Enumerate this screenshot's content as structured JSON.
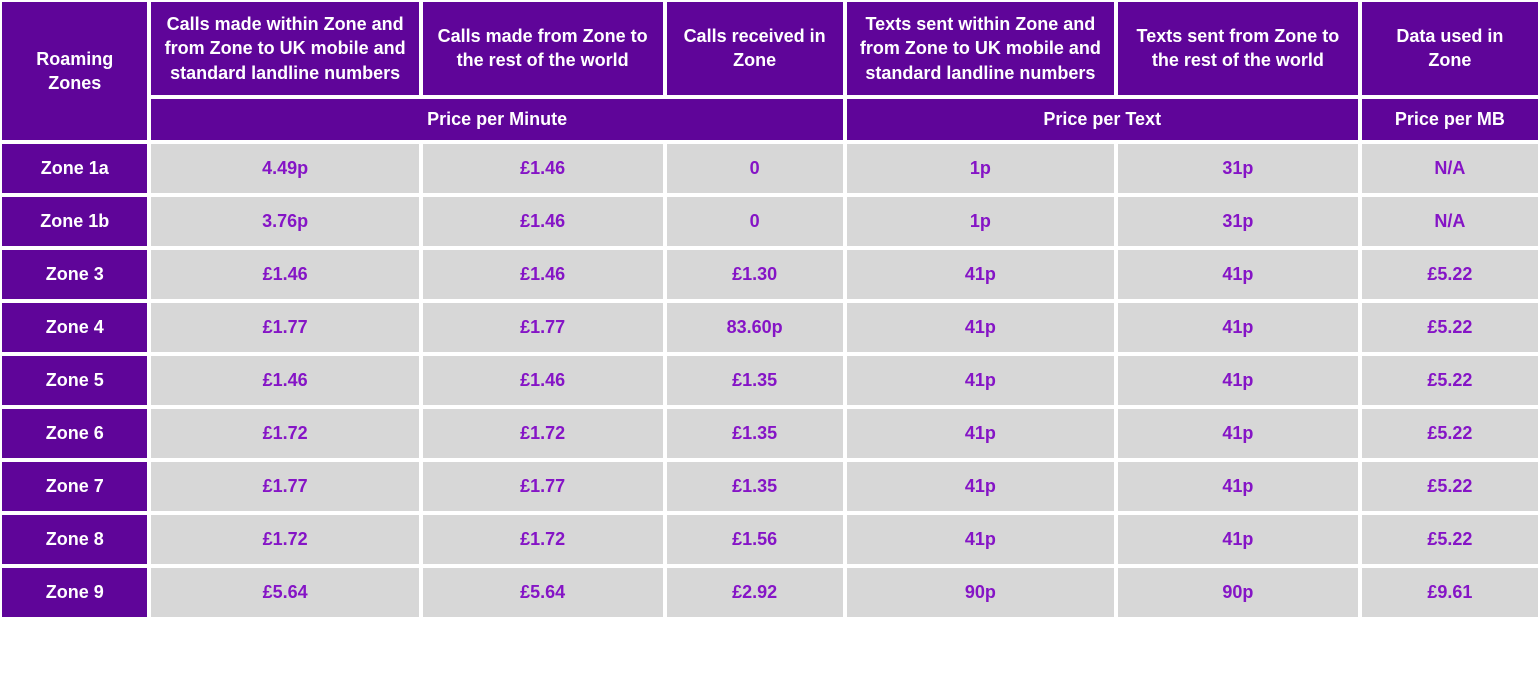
{
  "colors": {
    "header_bg": "#5f0599",
    "header_text": "#ffffff",
    "cell_bg": "#d7d7d7",
    "cell_text": "#8514c6",
    "border": "#ffffff"
  },
  "table": {
    "zone_header": "Roaming Zones",
    "columns": [
      "Calls made within Zone and from Zone to UK mobile and standard landline numbers",
      "Calls made from Zone to the rest of the world",
      "Calls received in Zone",
      "Texts sent within Zone and from Zone to UK mobile and standard landline numbers",
      "Texts sent from Zone to the rest of the world",
      "Data used in Zone"
    ],
    "sub_headers": [
      "Price per Minute",
      "Price per Text",
      "Price per MB"
    ],
    "rows": [
      {
        "zone": "Zone 1a",
        "cells": [
          "4.49p",
          "£1.46",
          "0",
          "1p",
          "31p",
          "N/A"
        ]
      },
      {
        "zone": "Zone 1b",
        "cells": [
          "3.76p",
          "£1.46",
          "0",
          "1p",
          "31p",
          "N/A"
        ]
      },
      {
        "zone": "Zone 3",
        "cells": [
          "£1.46",
          "£1.46",
          "£1.30",
          "41p",
          "41p",
          "£5.22"
        ]
      },
      {
        "zone": "Zone 4",
        "cells": [
          "£1.77",
          "£1.77",
          "83.60p",
          "41p",
          "41p",
          "£5.22"
        ]
      },
      {
        "zone": "Zone 5",
        "cells": [
          "£1.46",
          "£1.46",
          "£1.35",
          "41p",
          "41p",
          "£5.22"
        ]
      },
      {
        "zone": "Zone 6",
        "cells": [
          "£1.72",
          "£1.72",
          "£1.35",
          "41p",
          "41p",
          "£5.22"
        ]
      },
      {
        "zone": "Zone 7",
        "cells": [
          "£1.77",
          "£1.77",
          "£1.35",
          "41p",
          "41p",
          "£5.22"
        ]
      },
      {
        "zone": "Zone 8",
        "cells": [
          "£1.72",
          "£1.72",
          "£1.56",
          "41p",
          "41p",
          "£5.22"
        ]
      },
      {
        "zone": "Zone 9",
        "cells": [
          "£5.64",
          "£5.64",
          "£2.92",
          "90p",
          "90p",
          "£9.61"
        ]
      }
    ]
  }
}
